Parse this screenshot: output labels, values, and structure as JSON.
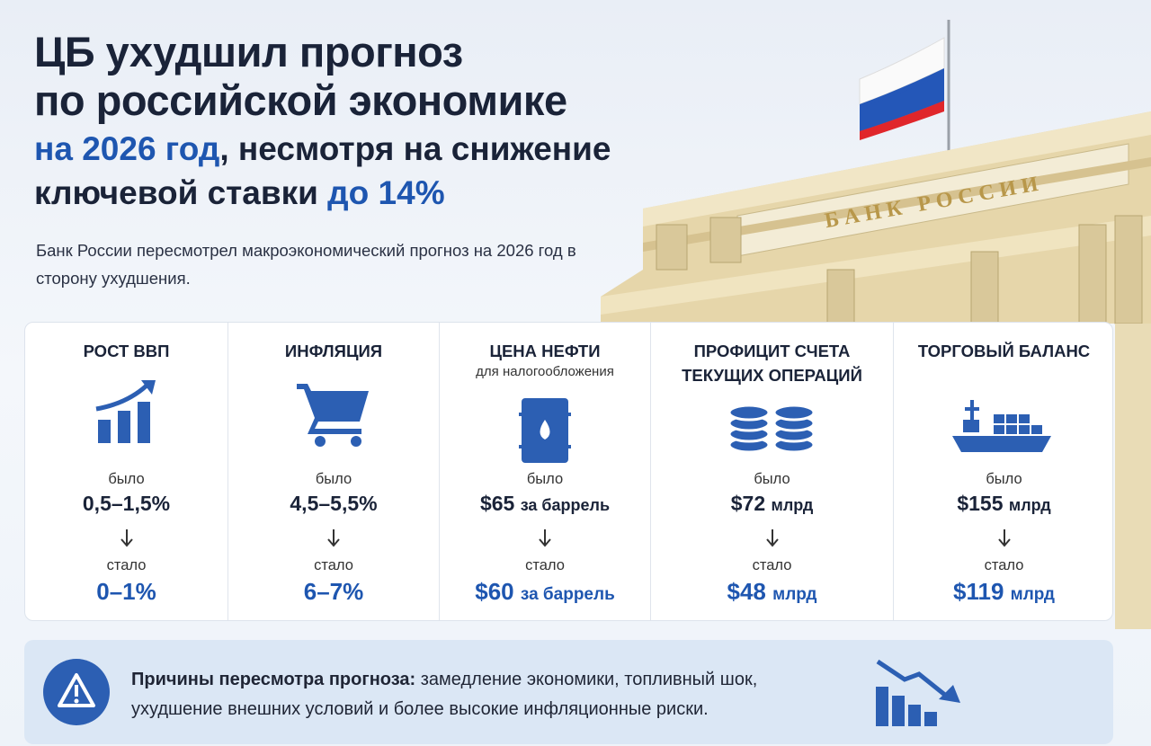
{
  "header": {
    "title_line1": "ЦБ ухудшил прогноз",
    "title_line2": "по российской экономике",
    "title_line3_blue": "на 2026 год",
    "title_line3_rest": ", несмотря на снижение",
    "title_line4_start": "ключевой ставки ",
    "title_line4_blue": "до 14%",
    "subtitle": "Банк России пересмотрел макроэкономический прогноз на 2026 год в сторону ухудшения.",
    "building_sign": "БАНК РОССИИ"
  },
  "cards": [
    {
      "title": "РОСТ ВВП",
      "before_label": "было",
      "before_value": "0,5–1,5%",
      "after_label": "стало",
      "after_value": "0–1%"
    },
    {
      "title": "ИНФЛЯЦИЯ",
      "before_label": "было",
      "before_value": "4,5–5,5%",
      "after_label": "стало",
      "after_value": "6–7%"
    },
    {
      "title": "ЦЕНА НЕФТИ",
      "subtitle": "для налогообложения",
      "before_label": "было",
      "before_value": "$65",
      "before_unit": "за баррель",
      "after_label": "стало",
      "after_value": "$60",
      "after_unit": "за баррель"
    },
    {
      "title": "ПРОФИЦИТ СЧЕТА ТЕКУЩИХ ОПЕРАЦИЙ",
      "before_label": "было",
      "before_value": "$72",
      "before_unit": "млрд",
      "after_label": "стало",
      "after_value": "$48",
      "after_unit": "млрд"
    },
    {
      "title": "ТОРГОВЫЙ БАЛАНС",
      "before_label": "было",
      "before_value": "$155",
      "before_unit": "млрд",
      "after_label": "стало",
      "after_value": "$119",
      "after_unit": "млрд"
    }
  ],
  "footer": {
    "label": "Причины пересмотра прогноза:",
    "text": " замедление экономики, топливный шок, ухудшение внешних условий и более высокие инфляционные риски."
  }
}
